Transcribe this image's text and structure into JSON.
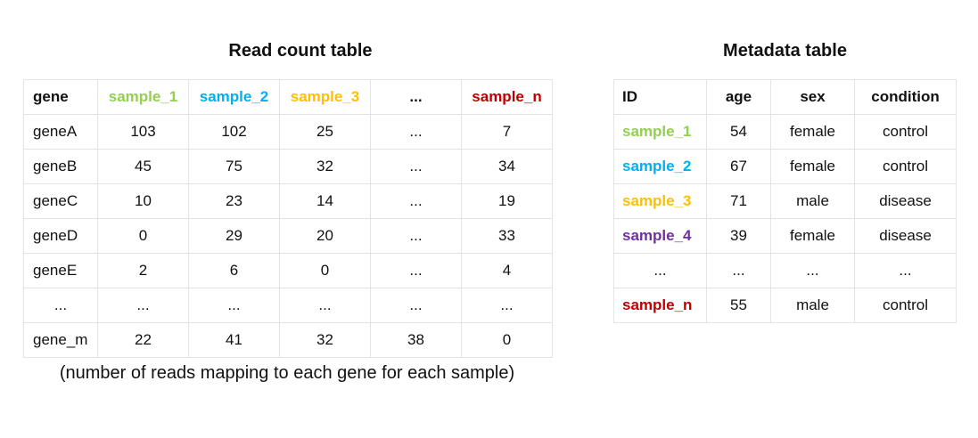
{
  "read_count": {
    "title": "Read count table",
    "headers": [
      {
        "label": "gene",
        "color": "#111111"
      },
      {
        "label": "sample_1",
        "color": "#92d050"
      },
      {
        "label": "sample_2",
        "color": "#00b0f0"
      },
      {
        "label": "sample_3",
        "color": "#ffc000"
      },
      {
        "label": "...",
        "color": "#111111"
      },
      {
        "label": "sample_n",
        "color": "#c00000"
      }
    ],
    "rows": [
      [
        "geneA",
        "103",
        "102",
        "25",
        "...",
        "7"
      ],
      [
        "geneB",
        "45",
        "75",
        "32",
        "...",
        "34"
      ],
      [
        "geneC",
        "10",
        "23",
        "14",
        "...",
        "19"
      ],
      [
        "geneD",
        "0",
        "29",
        "20",
        "...",
        "33"
      ],
      [
        "geneE",
        "2",
        "6",
        "0",
        "...",
        "4"
      ],
      [
        "...",
        "...",
        "...",
        "...",
        "...",
        "..."
      ],
      [
        "gene_m",
        "22",
        "41",
        "32",
        "38",
        "0"
      ]
    ],
    "caption": "(number of reads mapping to each gene for each sample)"
  },
  "metadata": {
    "title": "Metadata table",
    "headers": [
      "ID",
      "age",
      "sex",
      "condition"
    ],
    "rows": [
      {
        "id": "sample_1",
        "color": "#92d050",
        "age": "54",
        "sex": "female",
        "condition": "control"
      },
      {
        "id": "sample_2",
        "color": "#00b0f0",
        "age": "67",
        "sex": "female",
        "condition": "control"
      },
      {
        "id": "sample_3",
        "color": "#ffc000",
        "age": "71",
        "sex": "male",
        "condition": "disease"
      },
      {
        "id": "sample_4",
        "color": "#7030a0",
        "age": "39",
        "sex": "female",
        "condition": "disease"
      },
      {
        "id": "...",
        "color": "#111111",
        "age": "...",
        "sex": "...",
        "condition": "..."
      },
      {
        "id": "sample_n",
        "color": "#c00000",
        "age": "55",
        "sex": "male",
        "condition": "control"
      }
    ]
  }
}
